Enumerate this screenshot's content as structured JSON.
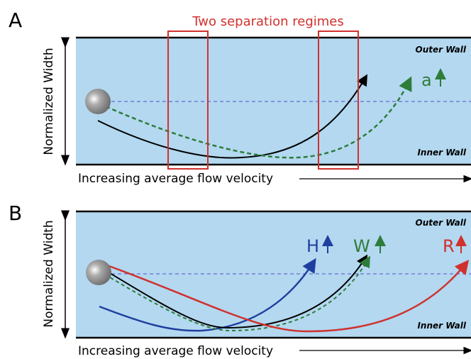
{
  "panels": [
    {
      "label": "A",
      "title": "Two separation regimes",
      "y_label": "Normalized Width",
      "x_label": "Increasing average flow velocity",
      "outer_wall": "Outer Wall",
      "inner_wall": "Inner Wall",
      "curve_labels": [
        "a"
      ]
    },
    {
      "label": "B",
      "y_label": "Normalized Width",
      "x_label": "Increasing average flow velocity",
      "outer_wall": "Outer Wall",
      "inner_wall": "Inner Wall",
      "curve_labels": [
        "H",
        "W",
        "R"
      ]
    }
  ]
}
